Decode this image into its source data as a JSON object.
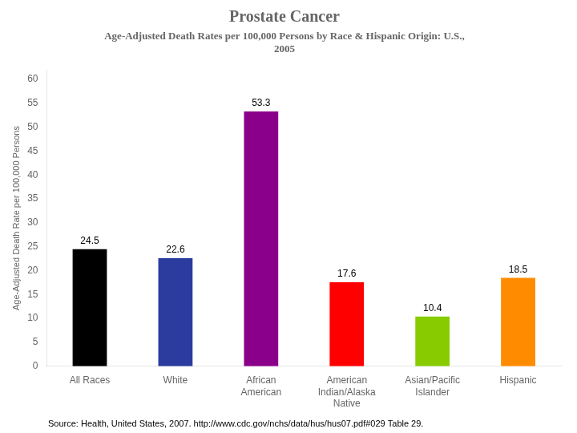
{
  "chart_data": {
    "type": "bar",
    "title": "Prostate Cancer",
    "subtitle": [
      "Age-Adjusted Death Rates per 100,000 Persons by Race & Hispanic Origin: U.S.,",
      "2005"
    ],
    "categories": [
      "All Races",
      "White",
      "African\nAmerican",
      "American\nIndian/Alaska\nNative",
      "Asian/Pacific\nIslander",
      "Hispanic"
    ],
    "values": [
      24.5,
      22.6,
      53.3,
      17.6,
      10.4,
      18.5
    ],
    "colors": [
      "#000000",
      "#2b3b9e",
      "#8b008b",
      "#ff0000",
      "#88cc00",
      "#ff8c00"
    ],
    "y_label": "Age-Adjusted Death Rate per 100,000 Persons",
    "ylim": [
      0,
      62
    ],
    "yticks": [
      0,
      5,
      10,
      15,
      20,
      25,
      30,
      35,
      40,
      45,
      50,
      55,
      60
    ],
    "annotations": [
      "Source: Health, United States, 2007. http://www.cdc.gov/nchs/data/hus/hus07.pdf#029 Table 29."
    ],
    "data_labels": true,
    "grid": false
  }
}
